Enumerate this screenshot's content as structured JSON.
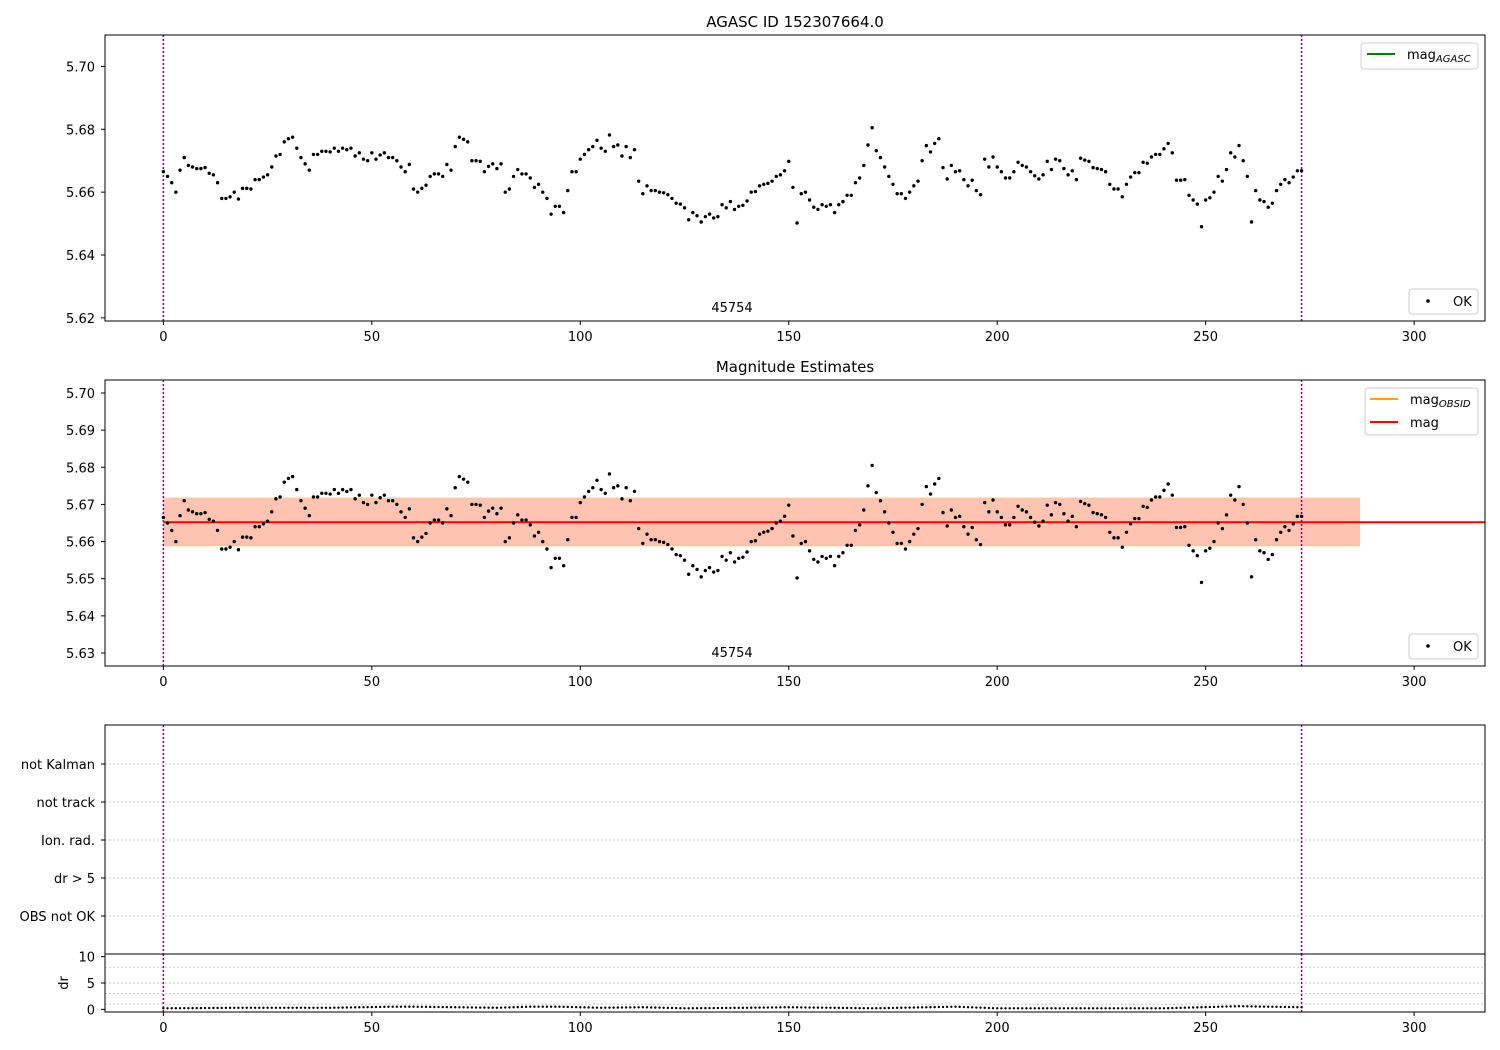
{
  "title": "AGASC ID 152307664.0",
  "colors": {
    "points": "#000000",
    "obs_line": "#800080",
    "mag_agasc": "#008000",
    "mag_obsid": "#ffa500",
    "mag": "#ff0000",
    "band_outer": "#ffc0cb",
    "band_inner": "#ffb380",
    "grid": "#b0b0b0"
  },
  "chart_data": [
    {
      "type": "scatter",
      "title": "AGASC ID 152307664.0",
      "xlim": [
        -14,
        317
      ],
      "ylim": [
        5.619,
        5.71
      ],
      "xticks": [
        0,
        50,
        100,
        150,
        200,
        250,
        300
      ],
      "yticks": [
        5.62,
        5.64,
        5.66,
        5.68,
        5.7
      ],
      "ytick_labels": [
        "5.62",
        "5.64",
        "5.66",
        "5.68",
        "5.70"
      ],
      "obs_lines": [
        0,
        273
      ],
      "obs_label": "45754",
      "legend_upper": [
        {
          "label": "mag",
          "sub": "AGASC",
          "color": "#008000"
        }
      ],
      "legend_lower": [
        {
          "label": "OK"
        }
      ],
      "series": [
        {
          "name": "OK",
          "source": "mag_points"
        }
      ]
    },
    {
      "type": "scatter",
      "title": "Magnitude Estimates",
      "xlim": [
        -14,
        317
      ],
      "ylim": [
        5.6265,
        5.7035
      ],
      "xticks": [
        0,
        50,
        100,
        150,
        200,
        250,
        300
      ],
      "yticks": [
        5.63,
        5.64,
        5.65,
        5.66,
        5.67,
        5.68,
        5.69,
        5.7
      ],
      "ytick_labels": [
        "5.63",
        "5.64",
        "5.65",
        "5.66",
        "5.67",
        "5.68",
        "5.69",
        "5.70"
      ],
      "obs_lines": [
        0,
        273
      ],
      "obs_label": "45754",
      "mag": 5.6652,
      "band": {
        "x": [
          0,
          287
        ],
        "y": [
          5.6588,
          5.6718
        ]
      },
      "legend_upper": [
        {
          "label": "mag",
          "sub": "OBSID",
          "color": "#ffa500"
        },
        {
          "label": "mag",
          "sub": "",
          "color": "#ff0000"
        }
      ],
      "legend_lower": [
        {
          "label": "OK"
        }
      ],
      "series": [
        {
          "name": "OK",
          "source": "mag_points"
        }
      ]
    },
    {
      "type": "scatter",
      "title": "",
      "xlim": [
        -14,
        317
      ],
      "flag_labels": [
        "not Kalman",
        "not track",
        "Ion. rad.",
        "dr > 5",
        "OBS not OK"
      ],
      "obs_lines": [
        0,
        273
      ]
    },
    {
      "type": "scatter",
      "title": "",
      "ylabel": "dr",
      "xlim": [
        -14,
        317
      ],
      "ylim": [
        -0.5,
        10.5
      ],
      "xticks": [
        0,
        50,
        100,
        150,
        200,
        250,
        300
      ],
      "yticks": [
        0,
        5,
        10
      ],
      "ytick_labels": [
        "0",
        "5",
        "10"
      ],
      "obs_lines": [
        0,
        273
      ],
      "dr_profile": {
        "x": [
          0,
          20,
          40,
          55,
          60,
          80,
          88,
          95,
          105,
          115,
          125,
          140,
          150,
          170,
          190,
          200,
          240,
          258,
          265,
          273
        ],
        "y": [
          0.2,
          0.3,
          0.3,
          0.5,
          0.5,
          0.3,
          0.5,
          0.5,
          0.3,
          0.4,
          0.2,
          0.3,
          0.4,
          0.2,
          0.5,
          0.2,
          0.2,
          0.6,
          0.5,
          0.4
        ]
      }
    }
  ],
  "mag_points": {
    "x": [
      0,
      1,
      2,
      3,
      4,
      5,
      6,
      7,
      8,
      9,
      10,
      11,
      12,
      13,
      14,
      15,
      16,
      17,
      18,
      19,
      20,
      21,
      22,
      23,
      24,
      25,
      26,
      27,
      28,
      29,
      30,
      31,
      32,
      33,
      34,
      35,
      36,
      37,
      38,
      39,
      40,
      41,
      42,
      43,
      44,
      45,
      46,
      47,
      48,
      49,
      50,
      51,
      52,
      53,
      54,
      55,
      56,
      57,
      58,
      59,
      60,
      61,
      62,
      63,
      64,
      65,
      66,
      67,
      68,
      69,
      70,
      71,
      72,
      73,
      74,
      75,
      76,
      77,
      78,
      79,
      80,
      81,
      82,
      83,
      84,
      85,
      86,
      87,
      88,
      89,
      90,
      91,
      92,
      93,
      94,
      95,
      96,
      97,
      98,
      99,
      100,
      101,
      102,
      103,
      104,
      105,
      106,
      107,
      108,
      109,
      110,
      111,
      112,
      113,
      114,
      115,
      116,
      117,
      118,
      119,
      120,
      121,
      122,
      123,
      124,
      125,
      126,
      127,
      128,
      129,
      130,
      131,
      132,
      133,
      134,
      135,
      136,
      137,
      138,
      139,
      140,
      141,
      142,
      143,
      144,
      145,
      146,
      147,
      148,
      149,
      150,
      151,
      152,
      153,
      154,
      155,
      156,
      157,
      158,
      159,
      160,
      161,
      162,
      163,
      164,
      165,
      166,
      167,
      168,
      169,
      170,
      171,
      172,
      173,
      174,
      175,
      176,
      177,
      178,
      179,
      180,
      181,
      182,
      183,
      184,
      185,
      186,
      187,
      188,
      189,
      190,
      191,
      192,
      193,
      194,
      195,
      196,
      197,
      198,
      199,
      200,
      201,
      202,
      203,
      204,
      205,
      206,
      207,
      208,
      209,
      210,
      211,
      212,
      213,
      214,
      215,
      216,
      217,
      218,
      219,
      220,
      221,
      222,
      223,
      224,
      225,
      226,
      227,
      228,
      229,
      230,
      231,
      232,
      233,
      234,
      235,
      236,
      237,
      238,
      239,
      240,
      241,
      242,
      243,
      244,
      245,
      246,
      247,
      248,
      249,
      250,
      251,
      252,
      253,
      254,
      255,
      256,
      257,
      258,
      259,
      260,
      261,
      262,
      263,
      264,
      265,
      266,
      267,
      268,
      269,
      270,
      271,
      272,
      273
    ],
    "y": [
      5.6665,
      5.665,
      5.663,
      5.66,
      5.667,
      5.671,
      5.6685,
      5.668,
      5.6675,
      5.6675,
      5.6678,
      5.666,
      5.6655,
      5.663,
      5.658,
      5.658,
      5.6585,
      5.66,
      5.6578,
      5.6612,
      5.6612,
      5.661,
      5.664,
      5.664,
      5.6648,
      5.6655,
      5.668,
      5.6715,
      5.672,
      5.676,
      5.677,
      5.6775,
      5.674,
      5.671,
      5.669,
      5.667,
      5.672,
      5.672,
      5.673,
      5.673,
      5.6728,
      5.674,
      5.673,
      5.674,
      5.6735,
      5.674,
      5.6715,
      5.6725,
      5.6705,
      5.67,
      5.6725,
      5.6705,
      5.6718,
      5.6725,
      5.671,
      5.671,
      5.67,
      5.668,
      5.6665,
      5.6688,
      5.661,
      5.66,
      5.6612,
      5.6622,
      5.665,
      5.6658,
      5.6658,
      5.665,
      5.6688,
      5.667,
      5.6745,
      5.6775,
      5.6768,
      5.676,
      5.67,
      5.67,
      5.6698,
      5.6665,
      5.6682,
      5.669,
      5.6675,
      5.669,
      5.66,
      5.661,
      5.665,
      5.6672,
      5.6658,
      5.6658,
      5.6645,
      5.6615,
      5.6625,
      5.66,
      5.658,
      5.653,
      5.6555,
      5.6555,
      5.6535,
      5.6605,
      5.6665,
      5.6665,
      5.6705,
      5.672,
      5.6735,
      5.6745,
      5.6765,
      5.674,
      5.673,
      5.6782,
      5.6745,
      5.675,
      5.6715,
      5.6745,
      5.671,
      5.6735,
      5.6635,
      5.6595,
      5.662,
      5.6605,
      5.6605,
      5.66,
      5.6598,
      5.6592,
      5.658,
      5.6565,
      5.6562,
      5.655,
      5.6512,
      5.6535,
      5.6525,
      5.6505,
      5.6522,
      5.653,
      5.6518,
      5.6522,
      5.656,
      5.655,
      5.657,
      5.6545,
      5.6555,
      5.6558,
      5.6572,
      5.66,
      5.6602,
      5.662,
      5.6625,
      5.6628,
      5.6635,
      5.665,
      5.6655,
      5.6668,
      5.6698,
      5.6615,
      5.6502,
      5.6595,
      5.66,
      5.6575,
      5.6552,
      5.6545,
      5.656,
      5.6555,
      5.656,
      5.6535,
      5.656,
      5.657,
      5.659,
      5.659,
      5.663,
      5.6645,
      5.6685,
      5.675,
      5.6805,
      5.6732,
      5.671,
      5.668,
      5.665,
      5.6625,
      5.6595,
      5.6595,
      5.658,
      5.66,
      5.662,
      5.6635,
      5.67,
      5.6748,
      5.6728,
      5.6755,
      5.677,
      5.6678,
      5.6642,
      5.6685,
      5.6665,
      5.6668,
      5.664,
      5.662,
      5.6638,
      5.6605,
      5.6592,
      5.6705,
      5.668,
      5.6712,
      5.668,
      5.6665,
      5.6645,
      5.6645,
      5.6665,
      5.6695,
      5.6685,
      5.668,
      5.6665,
      5.6652,
      5.6642,
      5.6655,
      5.6698,
      5.6672,
      5.6705,
      5.67,
      5.6675,
      5.6655,
      5.6668,
      5.664,
      5.6708,
      5.6702,
      5.6698,
      5.6678,
      5.6675,
      5.6672,
      5.6665,
      5.6625,
      5.661,
      5.661,
      5.6585,
      5.6625,
      5.6648,
      5.6662,
      5.6662,
      5.6695,
      5.6692,
      5.6712,
      5.672,
      5.672,
      5.6738,
      5.6755,
      5.6725,
      5.6638,
      5.6638,
      5.664,
      5.659,
      5.6575,
      5.6562,
      5.649,
      5.6575,
      5.6582,
      5.66,
      5.665,
      5.6635,
      5.6672,
      5.6725,
      5.6712,
      5.6748,
      5.67,
      5.665,
      5.6505,
      5.6605,
      5.6575,
      5.657,
      5.6552,
      5.6565,
      5.6605,
      5.6625,
      5.664,
      5.663,
      5.6648,
      5.6668,
      5.6668
    ]
  }
}
